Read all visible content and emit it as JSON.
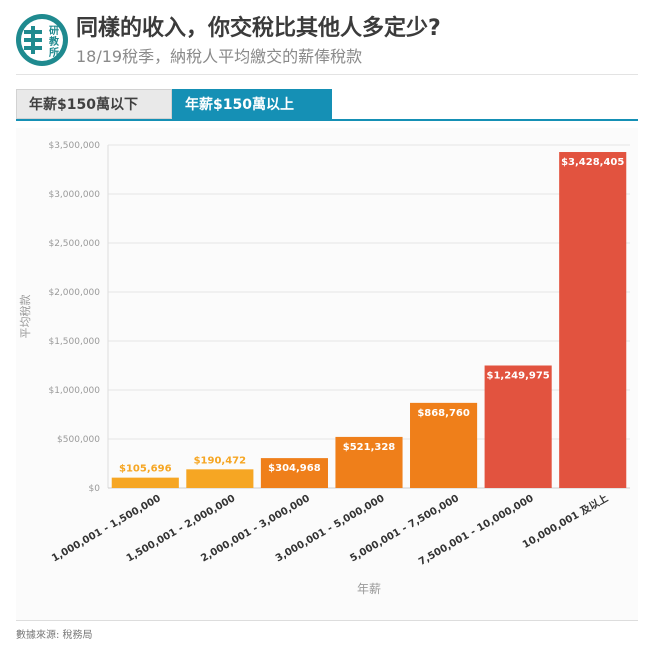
{
  "header": {
    "logo_text": "研教所",
    "title": "同樣的收入，你交稅比其他人多定少?",
    "subtitle": "18/19稅季，納稅人平均繳交的薪俸稅款"
  },
  "tabs": [
    {
      "label": "年薪$150萬以下",
      "active": false
    },
    {
      "label": "年薪$150萬以上",
      "active": true
    }
  ],
  "chart_data": {
    "type": "bar",
    "categories": [
      "1,000,001 - 1,500,000",
      "1,500,001 - 2,000,000",
      "2,000,001 - 3,000,000",
      "3,000,001 - 5,000,000",
      "5,000,001 - 7,500,000",
      "7,500,001 - 10,000,000",
      "10,000,001 及以上"
    ],
    "values": [
      105696,
      190472,
      304968,
      521328,
      868760,
      1249975,
      3428405
    ],
    "data_labels": [
      "$105,696",
      "$190,472",
      "$304,968",
      "$521,328",
      "$868,760",
      "$1,249,975",
      "$3,428,405"
    ],
    "colors": [
      "#f6a623",
      "#f6a623",
      "#ef7f1a",
      "#ef7f1a",
      "#ef7f1a",
      "#e2533f",
      "#e2533f"
    ],
    "xlabel": "年薪",
    "ylabel": "平均稅款",
    "ylim": [
      0,
      3500000
    ],
    "yticks": [
      0,
      500000,
      1000000,
      1500000,
      2000000,
      2500000,
      3000000,
      3500000
    ],
    "ytick_labels": [
      "$0",
      "$500,000",
      "$1,000,000",
      "$1,500,000",
      "$2,000,000",
      "$2,500,000",
      "$3,000,000",
      "$3,500,000"
    ],
    "grid": true,
    "legend": "none"
  },
  "footer": {
    "source": "數據來源: 稅務局"
  }
}
